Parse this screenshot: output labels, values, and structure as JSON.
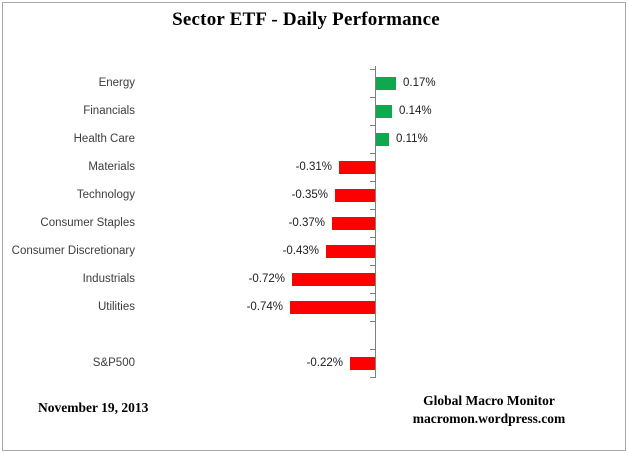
{
  "chart_data": {
    "type": "bar",
    "orientation": "horizontal",
    "title": "Sector ETF - Daily Performance",
    "unit": "%",
    "categories": [
      "Energy",
      "Financials",
      "Health Care",
      "Materials",
      "Technology",
      "Consumer Staples",
      "Consumer Discretionary",
      "Industrials",
      "Utilities",
      "",
      "S&P500"
    ],
    "values": [
      0.17,
      0.14,
      0.11,
      -0.31,
      -0.35,
      -0.37,
      -0.43,
      -0.72,
      -0.74,
      null,
      -0.22
    ],
    "value_labels": [
      "0.17%",
      "0.14%",
      "0.11%",
      "-0.31%",
      "-0.35%",
      "-0.37%",
      "-0.43%",
      "-0.72%",
      "-0.74%",
      "",
      "-0.22%"
    ],
    "positive_color": "#0fa84f",
    "negative_color": "#ff0000",
    "axis_color": "#808080",
    "baseline": 0,
    "xlim": [
      -0.9,
      0.5
    ],
    "grid": false,
    "legend": false,
    "data_label_position": "outside-end"
  },
  "footer": {
    "date": "November 19, 2013",
    "credit_line1": "Global Macro Monitor",
    "credit_line2": "macromon.wordpress.com"
  }
}
